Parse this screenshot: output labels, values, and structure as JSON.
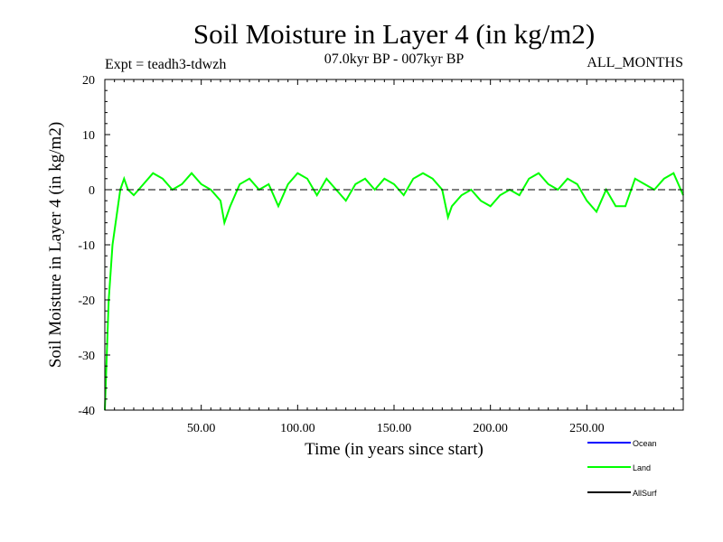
{
  "chart_data": {
    "type": "line",
    "title": "Soil Moisture in Layer 4 (in kg/m2)",
    "subtitle_left": "Expt = teadh3-tdwzh",
    "subtitle_center": "07.0kyr BP - 007kyr BP",
    "subtitle_right": "ALL_MONTHS",
    "xlabel": "Time (in years since start)",
    "ylabel": "Soil Moisture in Layer 4 (in kg/m2)",
    "xlim": [
      0,
      300
    ],
    "ylim": [
      -40,
      20
    ],
    "x_ticks": [
      50,
      100,
      150,
      200,
      250
    ],
    "x_tick_labels": [
      "50.00",
      "100.00",
      "150.00",
      "200.00",
      "250.00"
    ],
    "y_ticks": [
      20,
      10,
      0,
      -10,
      -20,
      -30,
      -40
    ],
    "y_tick_labels": [
      "20",
      "10",
      "0",
      "-10",
      "-20",
      "-30",
      "-40"
    ],
    "reference_line": 0,
    "series": [
      {
        "name": "Ocean",
        "color": "#0000ff",
        "values": []
      },
      {
        "name": "Land",
        "color": "#00ff00",
        "x": [
          0,
          2,
          4,
          6,
          8,
          10,
          12,
          15,
          20,
          25,
          30,
          35,
          40,
          45,
          50,
          55,
          60,
          62,
          65,
          70,
          75,
          80,
          85,
          90,
          95,
          100,
          105,
          110,
          115,
          120,
          125,
          130,
          135,
          140,
          145,
          150,
          155,
          160,
          165,
          170,
          175,
          178,
          180,
          185,
          190,
          195,
          200,
          205,
          210,
          215,
          220,
          225,
          230,
          235,
          240,
          245,
          250,
          255,
          260,
          265,
          270,
          275,
          280,
          285,
          290,
          295,
          300
        ],
        "values": [
          -40,
          -20,
          -10,
          -5,
          0,
          2,
          0,
          -1,
          1,
          3,
          2,
          0,
          1,
          3,
          1,
          0,
          -2,
          -6,
          -3,
          1,
          2,
          0,
          1,
          -3,
          1,
          3,
          2,
          -1,
          2,
          0,
          -2,
          1,
          2,
          0,
          2,
          1,
          -1,
          2,
          3,
          2,
          0,
          -5,
          -3,
          -1,
          0,
          -2,
          -3,
          -1,
          0,
          -1,
          2,
          3,
          1,
          0,
          2,
          1,
          -2,
          -4,
          0,
          -3,
          -3,
          2,
          1,
          0,
          2,
          3,
          -1
        ]
      },
      {
        "name": "AllSurf",
        "color": "#000000",
        "values": []
      }
    ],
    "legend_position": "bottom-right"
  }
}
